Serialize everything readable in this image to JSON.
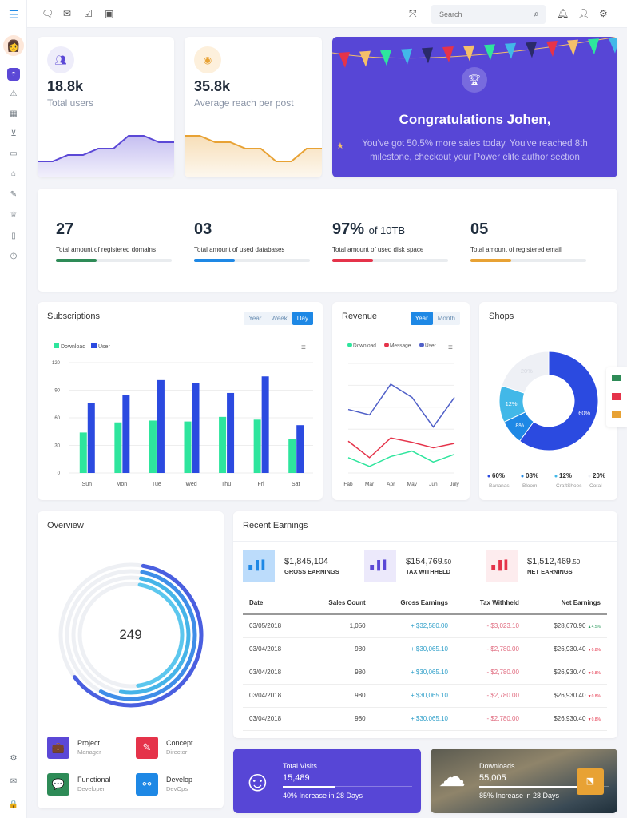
{
  "topbar": {
    "search_placeholder": "Search"
  },
  "cards": [
    {
      "value": "18.8k",
      "label": "Total users",
      "color": "#5b48d6",
      "trend": [
        2,
        2,
        3,
        3,
        4,
        4,
        6,
        6,
        5,
        5
      ]
    },
    {
      "value": "35.8k",
      "label": "Average reach per post",
      "color": "#e8a234",
      "trend": [
        6,
        6,
        5,
        5,
        4,
        4,
        2,
        2,
        4,
        4
      ]
    }
  ],
  "banner": {
    "title": "Congratulations Johen,",
    "text": "You've got 50.5% more sales today. You've reached 8th milestone, checkout your Power elite author section",
    "color": "#5746d6"
  },
  "stats": [
    {
      "value": "27",
      "suffix": "",
      "label": "Total amount of registered domains",
      "progress": 35,
      "color": "#2e8b57"
    },
    {
      "value": "03",
      "suffix": "",
      "label": "Total amount of used databases",
      "progress": 35,
      "color": "#1e88e5"
    },
    {
      "value": "97%",
      "suffix": "of 10TB",
      "label": "Total amount of used disk space",
      "progress": 35,
      "color": "#e5334a"
    },
    {
      "value": "05",
      "suffix": "",
      "label": "Total amount of registered email",
      "progress": 35,
      "color": "#e8a234"
    }
  ],
  "subscriptions": {
    "title": "Subscriptions",
    "tabs": [
      "Year",
      "Week",
      "Day"
    ],
    "active": "Day"
  },
  "revenue": {
    "title": "Revenue",
    "tabs": [
      "Year",
      "Month"
    ],
    "active": "Year"
  },
  "shops": {
    "title": "Shops"
  },
  "chart_data": [
    {
      "type": "bar",
      "categories": [
        "Sun",
        "Mon",
        "Tue",
        "Wed",
        "Thu",
        "Fri",
        "Sat"
      ],
      "ylim": [
        0,
        120
      ],
      "yticks": [
        0,
        30,
        60,
        90,
        120
      ],
      "legend": "top-left",
      "grid": true,
      "series": [
        {
          "name": "Download",
          "color": "#2ee59d",
          "values": [
            44,
            55,
            57,
            56,
            61,
            58,
            37
          ]
        },
        {
          "name": "User",
          "color": "#2b4ae0",
          "values": [
            76,
            85,
            101,
            98,
            87,
            105,
            52
          ]
        }
      ]
    },
    {
      "type": "line",
      "categories": [
        "Fab",
        "Mar",
        "Apr",
        "May",
        "Jun",
        "July"
      ],
      "legend": "top",
      "grid": true,
      "series": [
        {
          "name": "Download",
          "color": "#2ee59d",
          "values": [
            14,
            6,
            15,
            20,
            10,
            17
          ]
        },
        {
          "name": "Message",
          "color": "#e5334a",
          "values": [
            29,
            14,
            32,
            28,
            23,
            27
          ]
        },
        {
          "name": "User",
          "color": "#5060c8",
          "values": [
            58,
            53,
            81,
            69,
            42,
            69
          ]
        }
      ]
    },
    {
      "type": "pie",
      "donut": true,
      "slices": [
        {
          "label": "Bananas",
          "value": 60,
          "display": "60%",
          "color": "#2b4ae0"
        },
        {
          "label": "Bloom",
          "value": 8,
          "display": "08%",
          "color": "#1e88e5"
        },
        {
          "label": "CraftShoes",
          "value": 12,
          "display": "12%",
          "color": "#42b8e8"
        },
        {
          "label": "Coral",
          "value": 20,
          "display": "20%",
          "color": "#eef0f5"
        }
      ]
    }
  ],
  "overview": {
    "title": "Overview",
    "center": "249",
    "roles": [
      {
        "title": "Project",
        "sub": "Manager",
        "color": "#5b48d6",
        "icon": "💼"
      },
      {
        "title": "Concept",
        "sub": "Director",
        "color": "#e5334a",
        "icon": "✎"
      },
      {
        "title": "Functional",
        "sub": "Developer",
        "color": "#2e8b57",
        "icon": "💬"
      },
      {
        "title": "Develop",
        "sub": "DevOps",
        "color": "#1e88e5",
        "icon": "⚯"
      }
    ]
  },
  "earnings": {
    "title": "Recent Earnings",
    "summary": [
      {
        "value": "$1,845,104",
        "cents": "",
        "label": "GROSS EARNINGS",
        "bg": "#bcdcfb",
        "fg": "#1e88e5"
      },
      {
        "value": "$154,769",
        "cents": ".50",
        "label": "TAX WITHHELD",
        "bg": "#ece9fb",
        "fg": "#5b48d6"
      },
      {
        "value": "$1,512,469",
        "cents": ".50",
        "label": "NET EARNINGS",
        "bg": "#fdecee",
        "fg": "#e5334a"
      }
    ],
    "columns": [
      "Date",
      "Sales Count",
      "Gross Earnings",
      "Tax Withheld",
      "Net Earnings"
    ],
    "rows": [
      [
        "03/05/2018",
        "1,050",
        "+ $32,580.00",
        "- $3,023.10",
        "$28,670.90",
        "4.5%",
        "up"
      ],
      [
        "03/04/2018",
        "980",
        "+ $30,065.10",
        "- $2,780.00",
        "$26,930.40",
        "0.8%",
        "down"
      ],
      [
        "03/04/2018",
        "980",
        "+ $30,065.10",
        "- $2,780.00",
        "$26,930.40",
        "0.8%",
        "down"
      ],
      [
        "03/04/2018",
        "980",
        "+ $30,065.10",
        "- $2,780.00",
        "$26,930.40",
        "0.8%",
        "down"
      ],
      [
        "03/04/2018",
        "980",
        "+ $30,065.10",
        "- $2,780.00",
        "$26,930.40",
        "0.8%",
        "down"
      ]
    ]
  },
  "visits": {
    "title": "Total Visits",
    "value": "15,489",
    "progress": 40,
    "note": "40% Increase in 28 Days"
  },
  "downloads": {
    "title": "Downloads",
    "value": "55,005",
    "progress": 85,
    "note": "85% Increase in 28 Days"
  }
}
